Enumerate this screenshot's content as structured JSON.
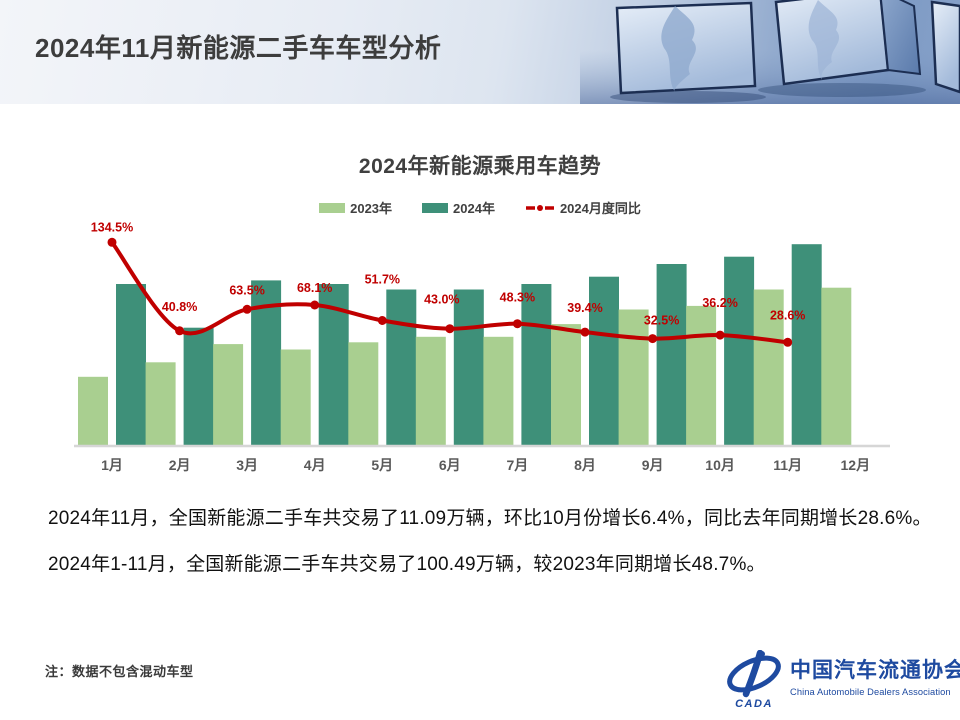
{
  "header": {
    "title": "2024年11月新能源二手车车型分析"
  },
  "chart": {
    "title": "2024年新能源乘用车趋势",
    "legend": [
      {
        "label": "2023年",
        "color": "#a9cf90"
      },
      {
        "label": "2024年",
        "color": "#3e9079"
      },
      {
        "label": "2024月度同比",
        "color": "#c00000"
      }
    ]
  },
  "chart_data": {
    "type": "bar",
    "title": "2024年新能源乘用车趋势",
    "categories": [
      "1月",
      "2月",
      "3月",
      "4月",
      "5月",
      "6月",
      "7月",
      "8月",
      "9月",
      "10月",
      "11月",
      "12月"
    ],
    "series": [
      {
        "name": "2023年",
        "type": "bar",
        "color": "#a9cf90",
        "unit": "万辆(估算)",
        "values": [
          3.8,
          4.6,
          5.6,
          5.3,
          5.7,
          6.0,
          6.0,
          6.7,
          7.5,
          7.7,
          8.6,
          8.7
        ]
      },
      {
        "name": "2024年",
        "type": "bar",
        "color": "#3e9079",
        "unit": "万辆(估算)",
        "values": [
          8.9,
          6.5,
          9.1,
          8.9,
          8.6,
          8.6,
          8.9,
          9.3,
          10.0,
          10.4,
          11.09,
          null
        ]
      },
      {
        "name": "2024月度同比",
        "type": "line",
        "color": "#c00000",
        "unit": "%",
        "values": [
          134.5,
          40.8,
          63.5,
          68.1,
          51.7,
          43.0,
          48.3,
          39.4,
          32.5,
          36.2,
          28.6,
          null
        ]
      }
    ],
    "xlabel": "",
    "ylabel": "",
    "ylim": [
      0,
      13
    ],
    "pct_axis_shown": false,
    "value_axis_shown": false,
    "grid": false,
    "legend_position": "top-center",
    "data_labels": "line-series-only"
  },
  "body": {
    "paragraph1": "2024年11月，全国新能源二手车共交易了11.09万辆，环比10月份增长6.4%，同比去年同期增长28.6%。",
    "paragraph2": "2024年1-11月，全国新能源二手车共交易了100.49万辆，较2023年同期增长48.7%。"
  },
  "footnote": "注：数据不包含混动车型",
  "logo": {
    "cada": "CADA",
    "name_cn": "中国汽车流通协会",
    "name_en": "China Automobile Dealers Association"
  }
}
